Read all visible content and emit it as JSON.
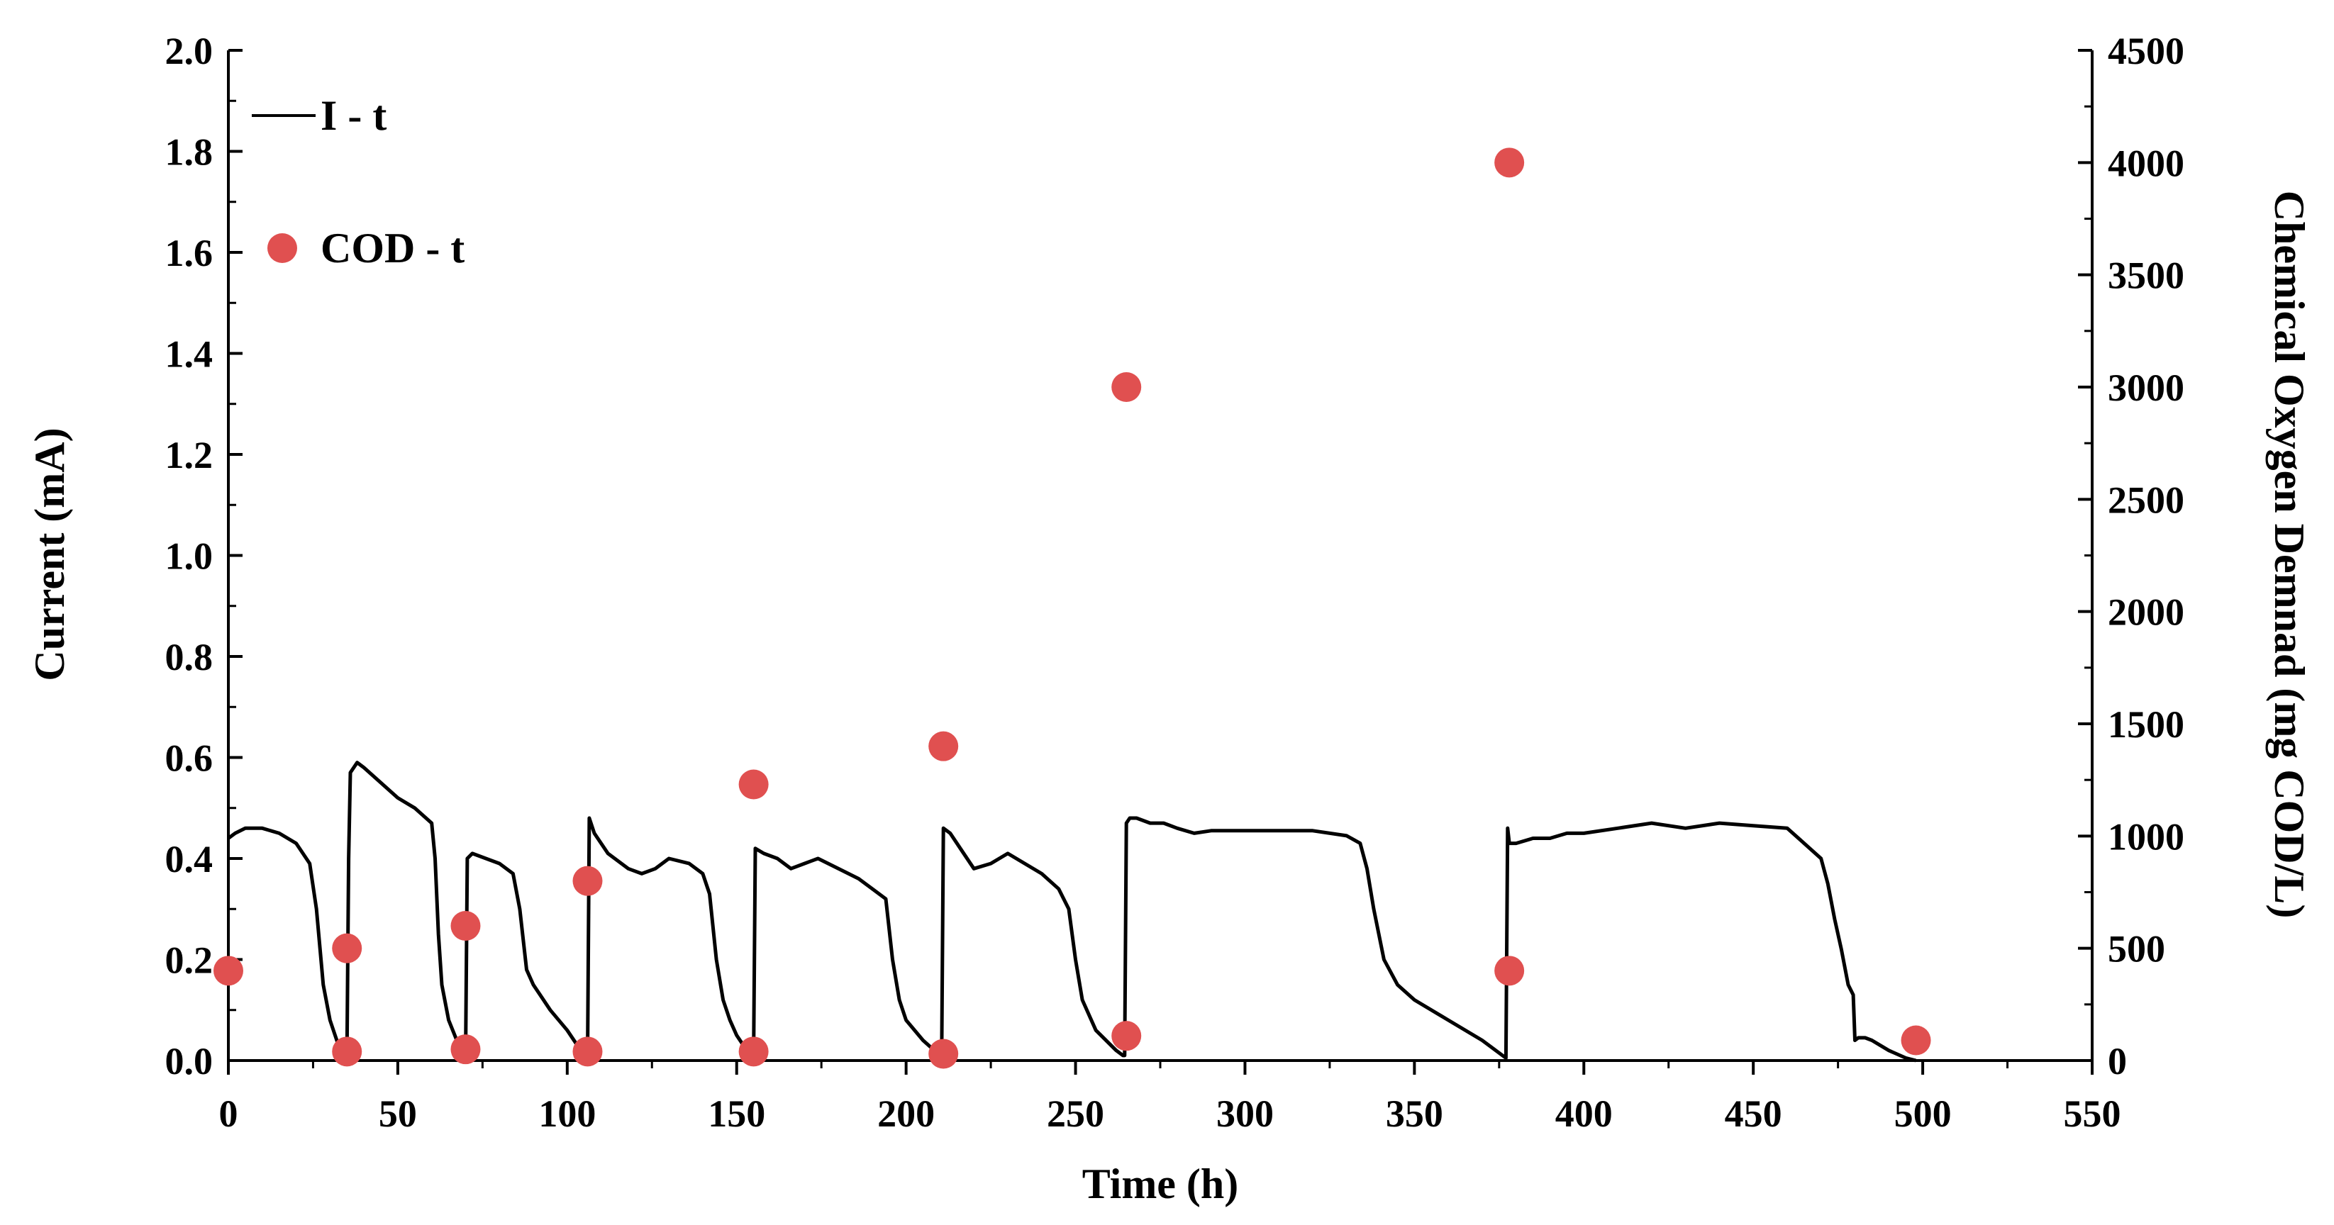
{
  "chart_data": {
    "type": "line+scatter",
    "title": "",
    "xlabel": "Time (h)",
    "ylabel_left": "Current (mA)",
    "ylabel_right": "Chemical Oxygen Demnad (mg COD/L)",
    "xlim": [
      0,
      550
    ],
    "ylim_left": [
      0,
      2.0
    ],
    "ylim_right": [
      0,
      4500
    ],
    "x_ticks": [
      "0",
      "50",
      "100",
      "150",
      "200",
      "250",
      "300",
      "350",
      "400",
      "450",
      "500",
      "550"
    ],
    "y_left_ticks": [
      "0.0",
      "0.2",
      "0.4",
      "0.6",
      "0.8",
      "1.0",
      "1.2",
      "1.4",
      "1.6",
      "1.8",
      "2.0"
    ],
    "y_right_ticks": [
      "0",
      "500",
      "1000",
      "1500",
      "2000",
      "2500",
      "3000",
      "3500",
      "4000",
      "4500"
    ],
    "legend_position": "top-left",
    "series": [
      {
        "name": "I - t",
        "kind": "line",
        "axis": "left",
        "color": "#000000",
        "x": [
          0,
          2,
          5,
          10,
          15,
          20,
          24,
          26,
          28,
          30,
          33,
          35,
          35.5,
          36,
          38,
          40,
          45,
          50,
          55,
          60,
          61,
          62,
          63,
          65,
          68,
          69.5,
          70,
          70.5,
          72,
          76,
          80,
          84,
          86,
          88,
          90,
          95,
          100,
          104,
          105.5,
          106,
          106.5,
          108,
          112,
          118,
          122,
          126,
          130,
          136,
          140,
          142,
          144,
          146,
          148,
          150,
          153,
          154.5,
          155,
          155.5,
          158,
          162,
          166,
          170,
          174,
          180,
          186,
          190,
          194,
          196,
          198,
          200,
          205,
          210,
          210.5,
          211,
          213,
          216,
          220,
          225,
          230,
          235,
          240,
          245,
          248,
          250,
          252,
          256,
          262,
          264,
          264.5,
          265,
          266,
          268,
          272,
          276,
          280,
          285,
          290,
          300,
          310,
          320,
          330,
          334,
          336,
          338,
          341,
          345,
          350,
          360,
          370,
          376,
          377,
          377.5,
          378,
          380,
          385,
          390,
          395,
          400,
          410,
          420,
          430,
          440,
          450,
          460,
          465,
          470,
          472,
          474,
          476,
          478,
          479.5,
          480,
          481,
          483,
          485,
          490,
          495,
          498
        ],
        "y": [
          0.44,
          0.45,
          0.46,
          0.46,
          0.45,
          0.43,
          0.39,
          0.3,
          0.15,
          0.08,
          0.02,
          0.01,
          0.4,
          0.57,
          0.59,
          0.58,
          0.55,
          0.52,
          0.5,
          0.47,
          0.4,
          0.25,
          0.15,
          0.08,
          0.03,
          0.01,
          0.01,
          0.4,
          0.41,
          0.4,
          0.39,
          0.37,
          0.3,
          0.18,
          0.15,
          0.1,
          0.06,
          0.02,
          0.01,
          0.01,
          0.48,
          0.45,
          0.41,
          0.38,
          0.37,
          0.38,
          0.4,
          0.39,
          0.37,
          0.33,
          0.2,
          0.12,
          0.08,
          0.05,
          0.02,
          0.01,
          0.01,
          0.42,
          0.41,
          0.4,
          0.38,
          0.39,
          0.4,
          0.38,
          0.36,
          0.34,
          0.32,
          0.2,
          0.12,
          0.08,
          0.04,
          0.01,
          0.01,
          0.46,
          0.45,
          0.42,
          0.38,
          0.39,
          0.41,
          0.39,
          0.37,
          0.34,
          0.3,
          0.2,
          0.12,
          0.06,
          0.02,
          0.01,
          0.01,
          0.47,
          0.48,
          0.48,
          0.47,
          0.47,
          0.46,
          0.45,
          0.455,
          0.455,
          0.455,
          0.455,
          0.445,
          0.43,
          0.38,
          0.3,
          0.2,
          0.15,
          0.12,
          0.08,
          0.04,
          0.01,
          0.005,
          0.46,
          0.43,
          0.43,
          0.44,
          0.44,
          0.45,
          0.45,
          0.46,
          0.47,
          0.46,
          0.47,
          0.465,
          0.46,
          0.43,
          0.4,
          0.35,
          0.28,
          0.22,
          0.15,
          0.13,
          0.04,
          0.045,
          0.045,
          0.04,
          0.02,
          0.005,
          0.0
        ]
      },
      {
        "name": "COD - t",
        "kind": "scatter",
        "axis": "right",
        "color": "#e05050",
        "x": [
          0,
          35,
          35,
          70,
          70,
          106,
          106,
          155,
          155,
          211,
          211,
          265,
          265,
          378,
          378,
          498
        ],
        "y": [
          400,
          40,
          500,
          50,
          600,
          40,
          800,
          40,
          1230,
          30,
          1400,
          110,
          3000,
          400,
          4000,
          90
        ]
      }
    ]
  }
}
